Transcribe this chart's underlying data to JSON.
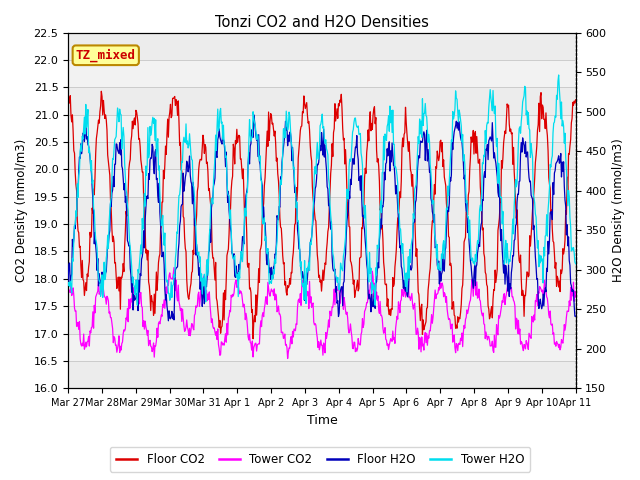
{
  "title": "Tonzi CO2 and H2O Densities",
  "xlabel": "Time",
  "ylabel_left": "CO2 Density (mmol/m3)",
  "ylabel_right": "H2O Density (mmol/m3)",
  "annotation": "TZ_mixed",
  "annotation_color": "#cc0000",
  "annotation_bg": "#ffff99",
  "annotation_border": "#bb8800",
  "ylim_left": [
    16.0,
    22.5
  ],
  "ylim_right": [
    150,
    600
  ],
  "yticks_left": [
    16.0,
    16.5,
    17.0,
    17.5,
    18.0,
    18.5,
    19.0,
    19.5,
    20.0,
    20.5,
    21.0,
    21.5,
    22.0,
    22.5
  ],
  "yticks_right": [
    150,
    200,
    250,
    300,
    350,
    400,
    450,
    500,
    550,
    600
  ],
  "grid_color": "#cccccc",
  "bg_color": "#ffffff",
  "plot_bg": "#f2f2f2",
  "floor_co2_color": "#dd0000",
  "tower_co2_color": "#ff00ff",
  "floor_h2o_color": "#0000bb",
  "tower_h2o_color": "#00ddee",
  "legend_labels": [
    "Floor CO2",
    "Tower CO2",
    "Floor H2O",
    "Tower H2O"
  ],
  "n_days": 15,
  "seed": 42,
  "tick_labels": [
    "Mar 27",
    "Mar 28",
    "Mar 29",
    "Mar 30",
    "Mar 31",
    "Apr 1",
    "Apr 2",
    "Apr 3",
    "Apr 4",
    "Apr 5",
    "Apr 6",
    "Apr 7",
    "Apr 8",
    "Apr 9",
    "Apr 10",
    "Apr 11"
  ]
}
